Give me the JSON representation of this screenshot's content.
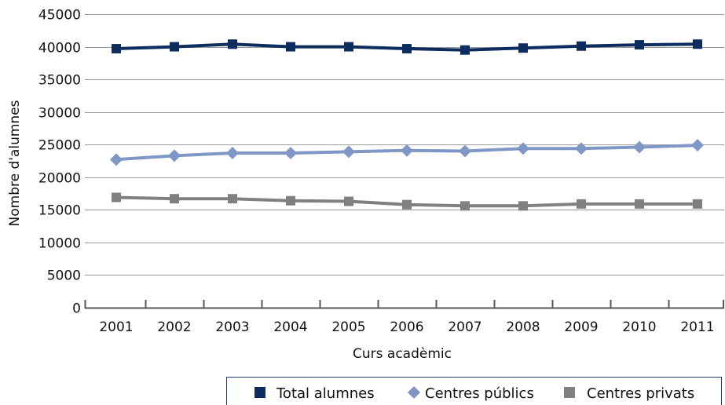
{
  "chart_data": {
    "type": "line",
    "title": "",
    "xlabel": "Curs acadèmic",
    "ylabel": "Nombre d'alumnes",
    "ylim": [
      0,
      45000
    ],
    "yticks": [
      0,
      5000,
      10000,
      15000,
      20000,
      25000,
      30000,
      35000,
      40000,
      45000
    ],
    "grid": true,
    "legend_position": "bottom",
    "categories": [
      "2001",
      "2002",
      "2003",
      "2004",
      "2005",
      "2006",
      "2007",
      "2008",
      "2009",
      "2010",
      "2011"
    ],
    "series": [
      {
        "name": "Total alumnes",
        "color": "#0d2d5e",
        "marker": "square",
        "values": [
          39700,
          40000,
          40400,
          40000,
          40000,
          39700,
          39500,
          39800,
          40100,
          40300,
          40400
        ]
      },
      {
        "name": "Centres públics",
        "color": "#7f97c6",
        "marker": "diamond",
        "values": [
          22700,
          23300,
          23700,
          23700,
          23900,
          24100,
          24000,
          24400,
          24400,
          24600,
          24900
        ]
      },
      {
        "name": "Centres privats",
        "color": "#808080",
        "marker": "square",
        "values": [
          16900,
          16700,
          16700,
          16400,
          16300,
          15800,
          15600,
          15600,
          15900,
          15900,
          15900
        ]
      }
    ]
  }
}
